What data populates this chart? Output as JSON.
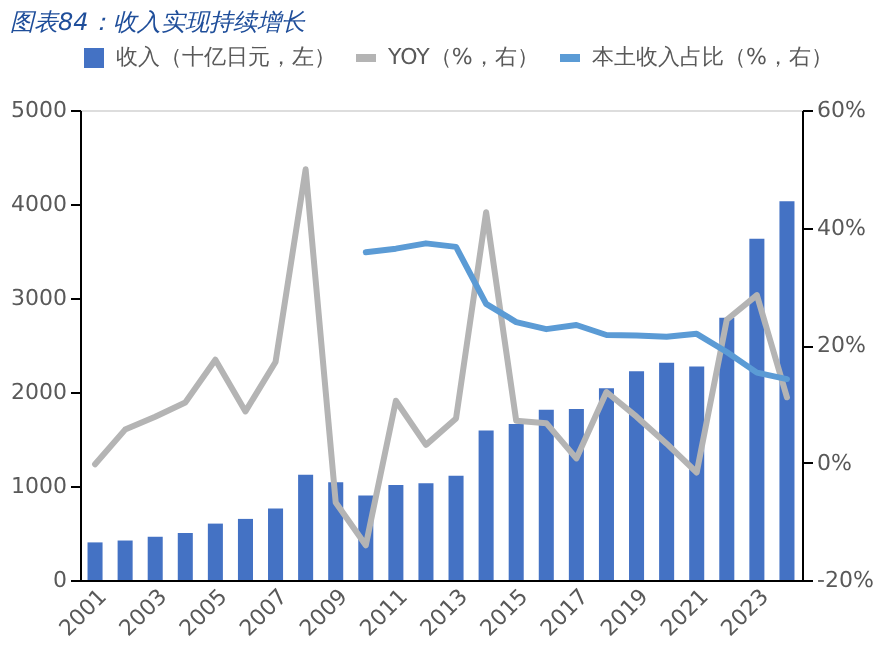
{
  "chart_data": {
    "type": "bar",
    "title": "图表84：收入实现持续增长",
    "categories": [
      "2001",
      null,
      "2003",
      null,
      "2005",
      null,
      "2007",
      null,
      "2009",
      null,
      "2011",
      null,
      "2013",
      null,
      "2015",
      null,
      "2017",
      null,
      "2019",
      null,
      "2021",
      null,
      "2023",
      null
    ],
    "series": [
      {
        "name": "收入（十亿日元，左）",
        "color": "#4472c4",
        "values": [
          400,
          420,
          460,
          500,
          600,
          650,
          760,
          1120,
          1040,
          900,
          1010,
          1030,
          1110,
          1590,
          1660,
          1810,
          1820,
          2040,
          2220,
          2310,
          2270,
          2790,
          3630,
          4030
        ]
      },
      {
        "name": "YOY（%，右）",
        "type": "line",
        "axis": "y2",
        "color": "#b4b4b4",
        "values": [
          -0.3,
          5.6,
          7.8,
          10.2,
          17.5,
          8.7,
          17.1,
          49.9,
          -6.8,
          -14.1,
          10.5,
          3.0,
          7.5,
          42.6,
          7.1,
          6.7,
          0.7,
          12.0,
          7.8,
          3.2,
          -1.7,
          24.3,
          28.5,
          11.1
        ]
      },
      {
        "name": "本土收入占比（%，右）",
        "type": "line",
        "axis": "y2",
        "color": "#5b9bd5",
        "values": [
          null,
          null,
          null,
          null,
          null,
          null,
          null,
          null,
          null,
          35.8,
          36.4,
          37.3,
          36.7,
          27.0,
          23.9,
          22.7,
          23.4,
          21.7,
          21.6,
          21.4,
          21.9,
          18.8,
          15.3,
          14.2
        ]
      }
    ],
    "ylim": [
      0,
      5000
    ],
    "yticks": [
      0,
      1000,
      2000,
      3000,
      4000,
      5000
    ],
    "y2lim": [
      -20,
      60
    ],
    "y2ticks": [
      {
        "value": -20,
        "label": "-20%"
      },
      {
        "value": 0,
        "label": "0%"
      },
      {
        "value": 20,
        "label": "20%"
      },
      {
        "value": 40,
        "label": "40%"
      },
      {
        "value": 60,
        "label": "60%"
      }
    ],
    "legend": "top",
    "grid": false
  }
}
